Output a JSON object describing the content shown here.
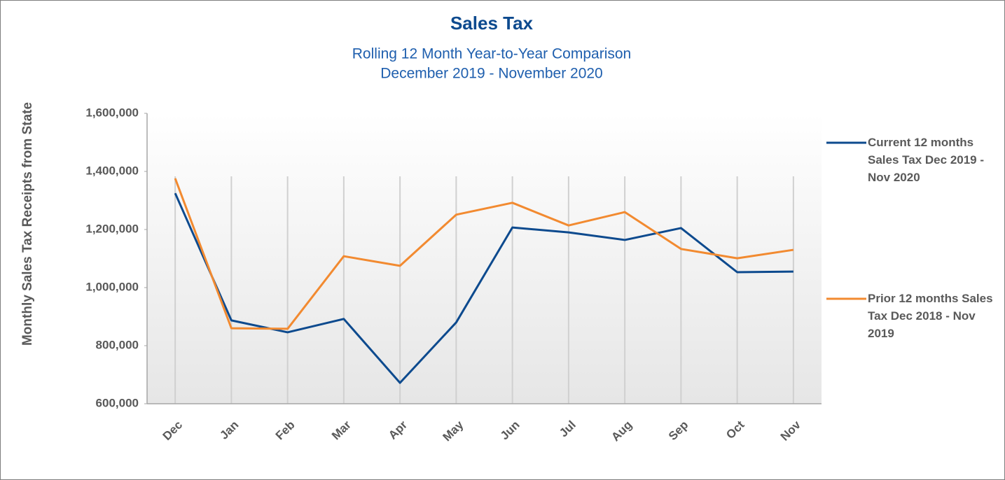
{
  "chart_data": {
    "type": "line",
    "title": "Sales Tax",
    "subtitle": [
      "Rolling 12 Month Year-to-Year Comparison",
      "December 2019 - November 2020"
    ],
    "y_label": "Monthly Sales Tax Receipts from State",
    "categories": [
      "Dec",
      "Jan",
      "Feb",
      "Mar",
      "Apr",
      "May",
      "Jun",
      "Jul",
      "Aug",
      "Sep",
      "Oct",
      "Nov"
    ],
    "series": [
      {
        "name": "Current 12 months Sales Tax Dec 2019 - Nov 2020",
        "color": "#0d4a8e",
        "values": [
          1325000,
          887000,
          846000,
          892000,
          672000,
          880000,
          1207000,
          1190000,
          1164000,
          1205000,
          1053000,
          1055000
        ]
      },
      {
        "name": "Prior 12 months Sales Tax Dec 2018 - Nov 2019",
        "color": "#f28a30",
        "values": [
          1376000,
          860000,
          858000,
          1108000,
          1075000,
          1251000,
          1292000,
          1214000,
          1260000,
          1133000,
          1101000,
          1130000
        ]
      }
    ],
    "ylim": [
      600000,
      1600000
    ],
    "yticks": [
      {
        "value": 600000,
        "label": "600,000"
      },
      {
        "value": 800000,
        "label": "800,000"
      },
      {
        "value": 1000000,
        "label": "1,000,000"
      },
      {
        "value": 1200000,
        "label": "1,200,000"
      },
      {
        "value": 1400000,
        "label": "1,400,000"
      },
      {
        "value": 1600000,
        "label": "1,600,000"
      }
    ],
    "grid": "x",
    "legend": "right"
  }
}
